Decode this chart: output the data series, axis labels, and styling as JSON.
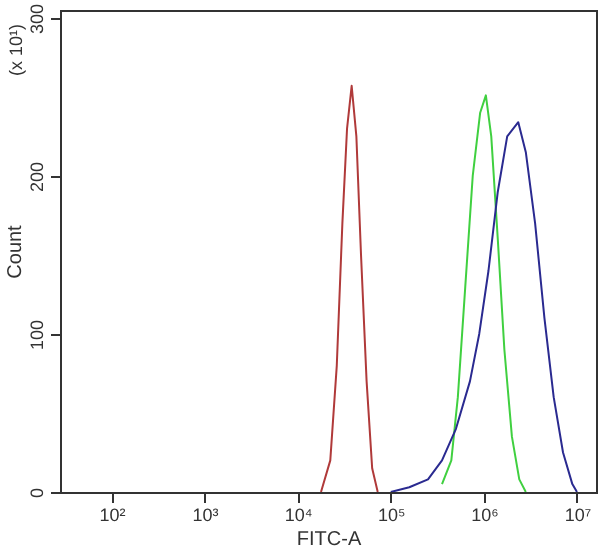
{
  "chart_data": {
    "type": "line",
    "xlabel": "FITC-A",
    "ylabel": "Count",
    "annotations": [
      "(x 10¹)"
    ],
    "log": "x",
    "line_style": "solid",
    "marker": "none",
    "xlim": [
      28,
      16000000
    ],
    "ylim": [
      0,
      305
    ],
    "xticks": [
      {
        "value": 100,
        "label": "10²"
      },
      {
        "value": 1000,
        "label": "10³"
      },
      {
        "value": 10000,
        "label": "10⁴"
      },
      {
        "value": 100000,
        "label": "10⁵"
      },
      {
        "value": 1000000,
        "label": "10⁶"
      },
      {
        "value": 10000000,
        "label": "10⁷"
      }
    ],
    "yticks": [
      0,
      100,
      200,
      300
    ],
    "series": [
      {
        "color": "#b03a3a",
        "x": [
          17800,
          22400,
          26300,
          30200,
          33900,
          38000,
          42700,
          47900,
          55000,
          63100,
          72400
        ],
        "values": [
          0,
          20,
          80,
          170,
          230,
          257,
          225,
          150,
          70,
          15,
          0
        ]
      },
      {
        "color": "#40d040",
        "x": [
          355000,
          447000,
          525000,
          631000,
          759000,
          912000,
          1050000,
          1200000,
          1410000,
          1660000,
          2000000,
          2400000,
          2820000
        ],
        "values": [
          5,
          20,
          60,
          130,
          200,
          240,
          251,
          225,
          160,
          90,
          35,
          8,
          0
        ]
      },
      {
        "color": "#2a2a90",
        "x": [
          100000,
          158000,
          251000,
          355000,
          501000,
          708000,
          891000,
          1120000,
          1410000,
          1780000,
          2340000,
          2820000,
          3550000,
          4470000,
          5620000,
          7080000,
          8910000,
          10000000
        ],
        "values": [
          0,
          3,
          8,
          20,
          40,
          70,
          100,
          140,
          190,
          225,
          234,
          215,
          170,
          110,
          60,
          25,
          5,
          0
        ]
      }
    ]
  }
}
